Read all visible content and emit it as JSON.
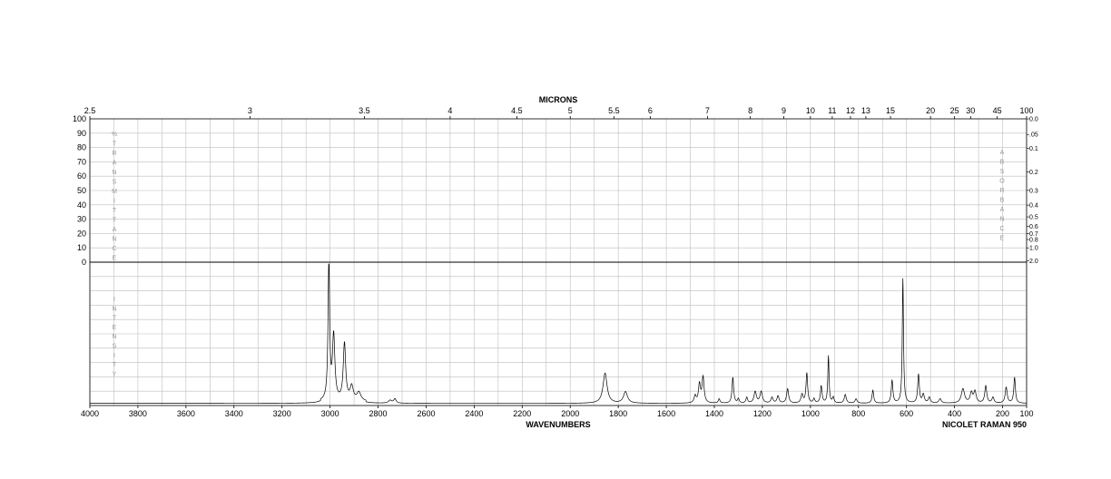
{
  "chart_data": {
    "type": "line",
    "top_axis_title": "MICRONS",
    "bottom_axis_title": "WAVENUMBERS",
    "instrument_label": "NICOLET RAMAN 950",
    "left_vertical_label_top": "%TRANSMITTANCE",
    "left_vertical_label_bottom": "INTENSITY",
    "right_vertical_label": "ABSORBANCE",
    "xlim": [
      4000,
      100
    ],
    "x_ticks": [
      "4000",
      "3800",
      "3600",
      "3400",
      "3200",
      "3000",
      "2800",
      "2600",
      "2400",
      "2200",
      "2000",
      "1800",
      "1600",
      "1400",
      "1200",
      "1000",
      "800",
      "600",
      "400",
      "200",
      "100"
    ],
    "micron_ticks": [
      {
        "label": "2.5",
        "wn": 4000
      },
      {
        "label": "3",
        "wn": 3333.3
      },
      {
        "label": "3.5",
        "wn": 2857.1
      },
      {
        "label": "4",
        "wn": 2500
      },
      {
        "label": "4.5",
        "wn": 2222.2
      },
      {
        "label": "5",
        "wn": 2000
      },
      {
        "label": "5.5",
        "wn": 1818.2
      },
      {
        "label": "6",
        "wn": 1666.7
      },
      {
        "label": "7",
        "wn": 1428.6
      },
      {
        "label": "8",
        "wn": 1250
      },
      {
        "label": "9",
        "wn": 1111.1
      },
      {
        "label": "10",
        "wn": 1000
      },
      {
        "label": "11",
        "wn": 909.1
      },
      {
        "label": "12",
        "wn": 833.3
      },
      {
        "label": "13",
        "wn": 769.2
      },
      {
        "label": "15",
        "wn": 666.7
      },
      {
        "label": "20",
        "wn": 500
      },
      {
        "label": "25",
        "wn": 400
      },
      {
        "label": "30",
        "wn": 333.3
      },
      {
        "label": "45",
        "wn": 222.2
      },
      {
        "label": "100",
        "wn": 100
      }
    ],
    "transmittance_ticks": [
      "100",
      "90",
      "80",
      "70",
      "60",
      "50",
      "40",
      "30",
      "20",
      "10",
      "0"
    ],
    "absorbance_ticks": [
      {
        "label": "0.0",
        "t": 100
      },
      {
        "label": ".05",
        "t": 89.1
      },
      {
        "label": "0.1",
        "t": 79.4
      },
      {
        "label": "0.2",
        "t": 63.1
      },
      {
        "label": "0.3",
        "t": 50.1
      },
      {
        "label": "0.4",
        "t": 39.8
      },
      {
        "label": "0.5",
        "t": 31.6
      },
      {
        "label": "0.6",
        "t": 25.1
      },
      {
        "label": "0.7",
        "t": 20.0
      },
      {
        "label": "0.8",
        "t": 15.8
      },
      {
        "label": "1.0",
        "t": 10.0
      },
      {
        "label": "2.0",
        "t": 1.0
      }
    ],
    "intensity_ylim": [
      0,
      100
    ],
    "grid": true,
    "baseline": 1.5,
    "peaks": [
      {
        "x": 3005,
        "h": 97,
        "w": 4
      },
      {
        "x": 2985,
        "h": 45,
        "w": 6
      },
      {
        "x": 2940,
        "h": 40,
        "w": 6
      },
      {
        "x": 2910,
        "h": 10,
        "w": 8
      },
      {
        "x": 2880,
        "h": 6,
        "w": 10
      },
      {
        "x": 2750,
        "h": 2,
        "w": 8
      },
      {
        "x": 2730,
        "h": 3,
        "w": 6
      },
      {
        "x": 1855,
        "h": 21,
        "w": 10
      },
      {
        "x": 1770,
        "h": 8,
        "w": 10
      },
      {
        "x": 1480,
        "h": 5,
        "w": 5
      },
      {
        "x": 1462,
        "h": 13,
        "w": 5
      },
      {
        "x": 1447,
        "h": 18,
        "w": 5
      },
      {
        "x": 1380,
        "h": 3,
        "w": 4
      },
      {
        "x": 1323,
        "h": 18,
        "w": 4
      },
      {
        "x": 1300,
        "h": 3,
        "w": 4
      },
      {
        "x": 1265,
        "h": 4,
        "w": 4
      },
      {
        "x": 1230,
        "h": 8,
        "w": 6
      },
      {
        "x": 1205,
        "h": 8,
        "w": 6
      },
      {
        "x": 1160,
        "h": 4,
        "w": 5
      },
      {
        "x": 1135,
        "h": 5,
        "w": 5
      },
      {
        "x": 1095,
        "h": 10,
        "w": 5
      },
      {
        "x": 1035,
        "h": 6,
        "w": 5
      },
      {
        "x": 1015,
        "h": 21,
        "w": 4
      },
      {
        "x": 985,
        "h": 3,
        "w": 4
      },
      {
        "x": 955,
        "h": 12,
        "w": 4
      },
      {
        "x": 925,
        "h": 33,
        "w": 3
      },
      {
        "x": 905,
        "h": 4,
        "w": 4
      },
      {
        "x": 855,
        "h": 6,
        "w": 5
      },
      {
        "x": 810,
        "h": 3,
        "w": 5
      },
      {
        "x": 740,
        "h": 9,
        "w": 4
      },
      {
        "x": 660,
        "h": 16,
        "w": 4
      },
      {
        "x": 615,
        "h": 87,
        "w": 3
      },
      {
        "x": 550,
        "h": 20,
        "w": 4
      },
      {
        "x": 530,
        "h": 6,
        "w": 5
      },
      {
        "x": 505,
        "h": 4,
        "w": 5
      },
      {
        "x": 460,
        "h": 3,
        "w": 6
      },
      {
        "x": 365,
        "h": 10,
        "w": 8
      },
      {
        "x": 330,
        "h": 7,
        "w": 6
      },
      {
        "x": 315,
        "h": 8,
        "w": 6
      },
      {
        "x": 270,
        "h": 12,
        "w": 5
      },
      {
        "x": 240,
        "h": 4,
        "w": 5
      },
      {
        "x": 185,
        "h": 11,
        "w": 5
      },
      {
        "x": 150,
        "h": 18,
        "w": 4
      }
    ]
  }
}
